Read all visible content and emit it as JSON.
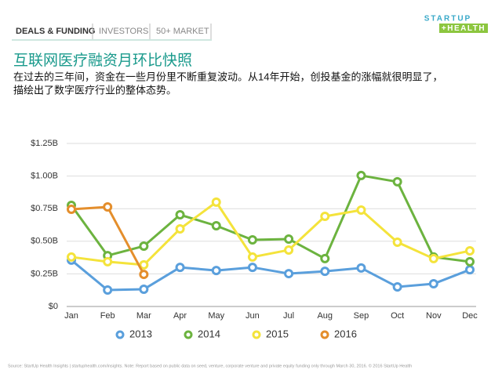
{
  "header": {
    "tabs": [
      "DEALS & FUNDING",
      "INVESTORS",
      "50+ MARKET"
    ],
    "logo_top": "STARTUP",
    "logo_bottom": "+HEALTH"
  },
  "title": "互联网医疗融资月环比快照",
  "subtitle": [
    "在过去的三年间，资金在一些月份里不断重复波动。从14年开始，创投基金的涨幅就很明显了，",
    "描绘出了数字医疗行业的整体态势。"
  ],
  "footer": "Source: StartUp Health Insights | startuphealth.com/insights. Note: Report based on public data on seed, venture, corporate venture and private equity funding only through March 30, 2016. © 2016 StartUp Health",
  "chart_data": {
    "type": "line",
    "categories": [
      "Jan",
      "Feb",
      "Mar",
      "Apr",
      "May",
      "Jun",
      "Jul",
      "Aug",
      "Sep",
      "Oct",
      "Nov",
      "Dec"
    ],
    "series": [
      {
        "name": "2013",
        "color": "#5a9fdc",
        "values": [
          0.355,
          0.126,
          0.132,
          0.3,
          0.276,
          0.3,
          0.252,
          0.27,
          0.295,
          0.15,
          0.174,
          0.282
        ]
      },
      {
        "name": "2014",
        "color": "#6cb33f",
        "values": [
          0.775,
          0.39,
          0.463,
          0.703,
          0.619,
          0.511,
          0.517,
          0.367,
          1.004,
          0.956,
          0.379,
          0.343
        ]
      },
      {
        "name": "2015",
        "color": "#f4e33b",
        "values": [
          0.379,
          0.343,
          0.319,
          0.595,
          0.8,
          0.379,
          0.433,
          0.691,
          0.739,
          0.493,
          0.367,
          0.427
        ]
      },
      {
        "name": "2016",
        "color": "#e48e2c",
        "values": [
          0.745,
          0.763,
          0.246,
          null,
          null,
          null,
          null,
          null,
          null,
          null,
          null,
          null
        ]
      }
    ],
    "ylim": [
      0,
      1.25
    ],
    "yticks": [
      {
        "value": 0,
        "label": "$0"
      },
      {
        "value": 0.25,
        "label": "$0.25B"
      },
      {
        "value": 0.5,
        "label": "$0.50B"
      },
      {
        "value": 0.75,
        "label": "$0.75B"
      },
      {
        "value": 1.0,
        "label": "$1.00B"
      },
      {
        "value": 1.25,
        "label": "$1.25B"
      }
    ],
    "grid": true,
    "legend": "bottom"
  }
}
